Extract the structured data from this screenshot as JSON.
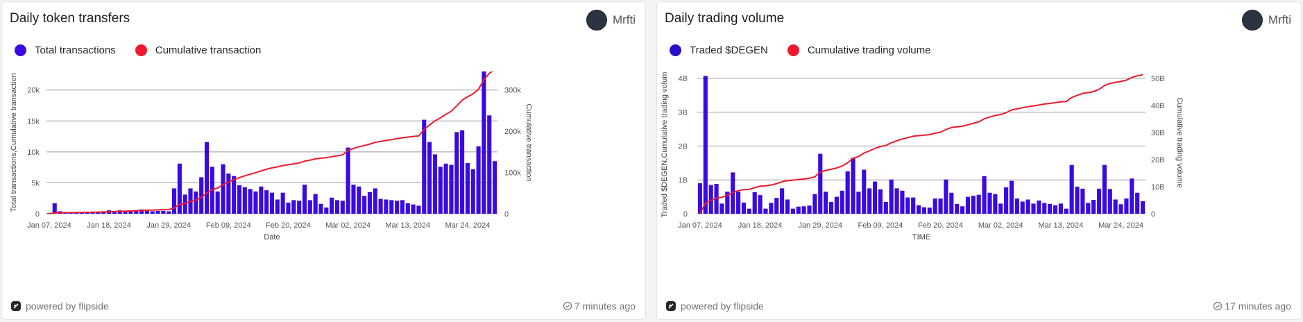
{
  "colors": {
    "bar": "#3a0be0",
    "line": "#f0182d",
    "grid": "#9b9ba3"
  },
  "footer": {
    "powered": "powered by flipside"
  },
  "panels": [
    {
      "title": "Daily token transfers",
      "author": "Mrfti",
      "updated": "7 minutes ago",
      "legend": [
        "Total transactions",
        "Cumulative transaction"
      ]
    },
    {
      "title": "Daily trading volume",
      "author": "Mrfti",
      "updated": "17 minutes ago",
      "legend": [
        "Traded $DEGEN",
        "Cumulative trading volume"
      ]
    }
  ],
  "chart_data": [
    {
      "type": "bar",
      "title": "Daily token transfers",
      "xlabel": "Date",
      "ylabel": "Total transactions,Cumulative transaction",
      "y2label": "Cumulative transaction",
      "ylim": [
        0,
        23000
      ],
      "y2lim": [
        0,
        345000
      ],
      "yticks": [
        0,
        5000,
        10000,
        15000,
        20000
      ],
      "ytick_labels": [
        "0",
        "5k",
        "10k",
        "15k",
        "20k"
      ],
      "y2ticks": [
        0,
        100000,
        200000,
        300000
      ],
      "y2tick_labels": [
        "0",
        "100k",
        "200k",
        "300k"
      ],
      "x_tick_labels": [
        "Jan 07, 2024",
        "Jan 18, 2024",
        "Jan 29, 2024",
        "Feb 09, 2024",
        "Feb 20, 2024",
        "Mar 02, 2024",
        "Mar 13, 2024",
        "Mar 24, 2024"
      ],
      "x_tick_index": [
        0,
        11,
        22,
        33,
        44,
        55,
        66,
        77
      ],
      "series": [
        {
          "name": "Total transactions",
          "type": "bar",
          "values": [
            100,
            1700,
            400,
            150,
            120,
            150,
            200,
            280,
            300,
            250,
            320,
            550,
            400,
            550,
            450,
            480,
            600,
            700,
            450,
            400,
            450,
            450,
            400,
            4100,
            8100,
            3100,
            4100,
            3600,
            5900,
            11600,
            7600,
            3600,
            8000,
            6500,
            6100,
            4600,
            4300,
            4000,
            3600,
            4400,
            3800,
            3400,
            2300,
            3400,
            1800,
            2200,
            2100,
            4700,
            2200,
            3200,
            1600,
            1000,
            2600,
            2200,
            2100,
            10700,
            4700,
            4400,
            2900,
            3500,
            4100,
            2400,
            2300,
            2200,
            2100,
            2200,
            1700,
            1500,
            1300,
            15200,
            11600,
            9600,
            7600,
            8100,
            7900,
            13200,
            13500,
            8200,
            7200,
            10900,
            23200,
            15900,
            8500
          ]
        },
        {
          "name": "Cumulative transaction",
          "type": "line",
          "values": [
            0,
            2000,
            2500,
            2700,
            2800,
            3000,
            3200,
            3500,
            3800,
            4000,
            4300,
            4900,
            5200,
            5800,
            6200,
            6700,
            7300,
            8000,
            8500,
            8900,
            9300,
            9800,
            10100,
            14300,
            22300,
            25300,
            29500,
            33200,
            39300,
            50800,
            58500,
            62200,
            70400,
            76800,
            83000,
            87600,
            92000,
            96000,
            99600,
            104000,
            107800,
            111200,
            113600,
            117000,
            118800,
            121000,
            123100,
            127800,
            130000,
            133200,
            134800,
            135800,
            138400,
            140600,
            142700,
            153400,
            158100,
            162500,
            165400,
            168900,
            173000,
            175400,
            177700,
            179900,
            182000,
            184200,
            185900,
            187400,
            188700,
            203900,
            215500,
            225100,
            232700,
            240800,
            248700,
            261900,
            275400,
            283600,
            290800,
            301700,
            324900,
            340800,
            349300
          ]
        }
      ]
    },
    {
      "type": "bar",
      "title": "Daily trading volume",
      "xlabel": "TIME",
      "ylabel": "Traded $DEGEN,Cumulative trading volume",
      "y2label": "Cumulative trading volume",
      "ylim": [
        0,
        4200000000
      ],
      "y2lim": [
        0,
        52500000000
      ],
      "yticks": [
        0,
        1000000000,
        2000000000,
        3000000000,
        4000000000
      ],
      "ytick_labels": [
        "0",
        "1B",
        "2B",
        "3B",
        "4B"
      ],
      "y2ticks": [
        0,
        10000000000,
        20000000000,
        30000000000,
        40000000000,
        50000000000
      ],
      "y2tick_labels": [
        "0",
        "10B",
        "20B",
        "30B",
        "40B",
        "50B"
      ],
      "x_tick_labels": [
        "Jan 07, 2024",
        "Jan 18, 2024",
        "Jan 29, 2024",
        "Feb 09, 2024",
        "Feb 20, 2024",
        "Mar 02, 2024",
        "Mar 13, 2024",
        "Mar 24, 2024"
      ],
      "x_tick_index": [
        0,
        11,
        22,
        33,
        44,
        55,
        66,
        77
      ],
      "series": [
        {
          "name": "Traded $DEGEN",
          "type": "bar",
          "values": [
            900000000,
            4070000000,
            850000000,
            880000000,
            300000000,
            650000000,
            1220000000,
            650000000,
            330000000,
            150000000,
            640000000,
            550000000,
            150000000,
            320000000,
            470000000,
            750000000,
            420000000,
            150000000,
            210000000,
            220000000,
            240000000,
            580000000,
            1770000000,
            650000000,
            350000000,
            500000000,
            680000000,
            1250000000,
            1650000000,
            650000000,
            1300000000,
            750000000,
            950000000,
            720000000,
            350000000,
            1010000000,
            750000000,
            680000000,
            480000000,
            480000000,
            250000000,
            190000000,
            180000000,
            450000000,
            450000000,
            1010000000,
            620000000,
            290000000,
            220000000,
            500000000,
            530000000,
            560000000,
            1110000000,
            620000000,
            580000000,
            300000000,
            780000000,
            970000000,
            450000000,
            360000000,
            420000000,
            300000000,
            390000000,
            320000000,
            290000000,
            250000000,
            300000000,
            150000000,
            1440000000,
            800000000,
            740000000,
            320000000,
            410000000,
            740000000,
            1440000000,
            730000000,
            420000000,
            280000000,
            450000000,
            1040000000,
            620000000,
            370000000
          ]
        },
        {
          "name": "Cumulative trading volume",
          "type": "line",
          "values": [
            0,
            4000000000,
            5000000000,
            5800000000,
            6100000000,
            6700000000,
            7900000000,
            8500000000,
            8900000000,
            9000000000,
            9600000000,
            10200000000,
            10300000000,
            10600000000,
            11100000000,
            11800000000,
            12200000000,
            12400000000,
            12600000000,
            12800000000,
            13100000000,
            13600000000,
            15400000000,
            16000000000,
            16400000000,
            16900000000,
            17600000000,
            18800000000,
            20500000000,
            21100000000,
            22400000000,
            23200000000,
            24100000000,
            24800000000,
            25200000000,
            26200000000,
            26900000000,
            27600000000,
            28100000000,
            28600000000,
            28800000000,
            29000000000,
            29200000000,
            29700000000,
            30100000000,
            31100000000,
            31800000000,
            32100000000,
            32300000000,
            32800000000,
            33400000000,
            33900000000,
            35000000000,
            35700000000,
            36300000000,
            36600000000,
            37300000000,
            38300000000,
            38700000000,
            39100000000,
            39500000000,
            39800000000,
            40100000000,
            40500000000,
            40700000000,
            41000000000,
            41300000000,
            41400000000,
            42900000000,
            43700000000,
            44400000000,
            44700000000,
            45100000000,
            45900000000,
            47300000000,
            48100000000,
            48500000000,
            48800000000,
            49300000000,
            50300000000,
            50900000000,
            51300000000
          ]
        }
      ]
    }
  ]
}
